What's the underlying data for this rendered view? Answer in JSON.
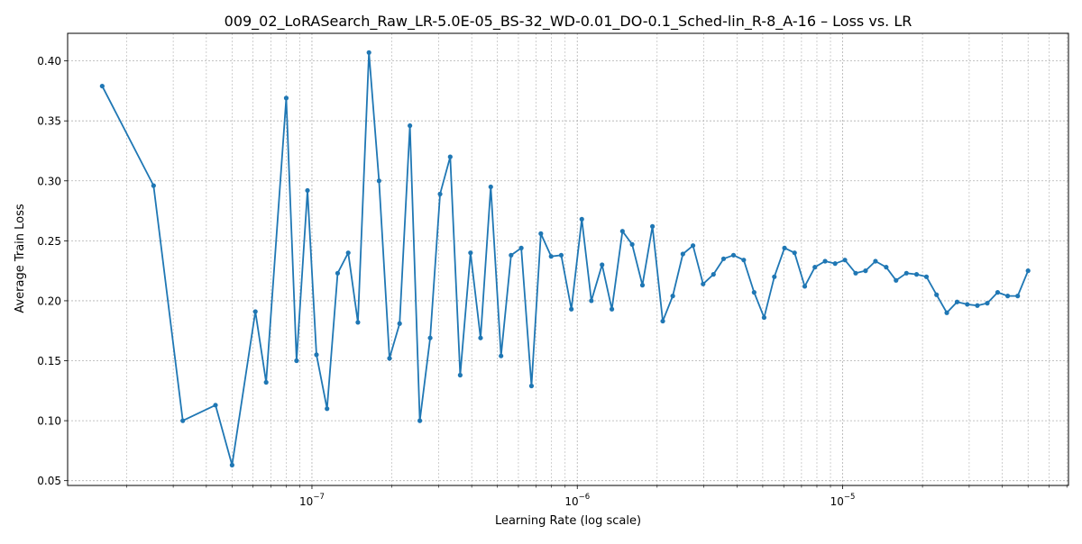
{
  "chart_data": {
    "type": "line",
    "title": "009_02_LoRASearch_Raw_LR-5.0E-05_BS-32_WD-0.01_DO-0.1_Sched-lin_R-8_A-16 – Loss vs. LR",
    "xlabel": "Learning Rate (log scale)",
    "ylabel": "Average Train Loss",
    "xscale": "log",
    "xlim": [
      1.2e-08,
      7.1e-05
    ],
    "ylim": [
      0.046,
      0.423
    ],
    "xticks": [
      {
        "value": 1e-07,
        "base": "10",
        "exp": "−7"
      },
      {
        "value": 1e-06,
        "base": "10",
        "exp": "−6"
      },
      {
        "value": 1e-05,
        "base": "10",
        "exp": "−5"
      }
    ],
    "yticks": [
      {
        "value": 0.05,
        "label": "0.05"
      },
      {
        "value": 0.1,
        "label": "0.10"
      },
      {
        "value": 0.15,
        "label": "0.15"
      },
      {
        "value": 0.2,
        "label": "0.20"
      },
      {
        "value": 0.25,
        "label": "0.25"
      },
      {
        "value": 0.3,
        "label": "0.30"
      },
      {
        "value": 0.35,
        "label": "0.35"
      },
      {
        "value": 0.4,
        "label": "0.40"
      }
    ],
    "grid": true,
    "line_color": "#1f77b4",
    "series": [
      {
        "x": [
          1.62e-08,
          2.53e-08,
          3.26e-08,
          4.33e-08,
          5e-08,
          6.12e-08,
          6.72e-08,
          8e-08,
          8.75e-08,
          9.62e-08,
          1.04e-07,
          1.14e-07,
          1.25e-07,
          1.37e-07,
          1.49e-07,
          1.64e-07,
          1.79e-07,
          1.96e-07,
          2.14e-07,
          2.34e-07,
          2.55e-07,
          2.79e-07,
          3.04e-07,
          3.32e-07,
          3.62e-07,
          3.96e-07,
          4.32e-07,
          4.72e-07,
          5.16e-07,
          5.63e-07,
          6.15e-07,
          6.72e-07,
          7.29e-07,
          7.97e-07,
          8.7e-07,
          9.5e-07,
          1.04e-06,
          1.13e-06,
          1.24e-06,
          1.35e-06,
          1.48e-06,
          1.61e-06,
          1.76e-06,
          1.92e-06,
          2.1e-06,
          2.29e-06,
          2.5e-06,
          2.73e-06,
          2.98e-06,
          3.26e-06,
          3.56e-06,
          3.88e-06,
          4.24e-06,
          4.64e-06,
          5.06e-06,
          5.53e-06,
          6.04e-06,
          6.59e-06,
          7.2e-06,
          7.86e-06,
          8.59e-06,
          9.37e-06,
          1.02e-05,
          1.12e-05,
          1.22e-05,
          1.33e-05,
          1.46e-05,
          1.59e-05,
          1.74e-05,
          1.9e-05,
          2.07e-05,
          2.26e-05,
          2.47e-05,
          2.7e-05,
          2.95e-05,
          3.22e-05,
          3.51e-05,
          3.84e-05,
          4.19e-05,
          4.57e-05,
          5e-05
        ],
        "y": [
          0.379,
          0.296,
          0.1,
          0.113,
          0.063,
          0.191,
          0.132,
          0.369,
          0.15,
          0.292,
          0.155,
          0.11,
          0.223,
          0.24,
          0.182,
          0.407,
          0.3,
          0.152,
          0.181,
          0.346,
          0.1,
          0.169,
          0.289,
          0.32,
          0.138,
          0.24,
          0.169,
          0.295,
          0.154,
          0.238,
          0.244,
          0.129,
          0.256,
          0.237,
          0.238,
          0.193,
          0.268,
          0.2,
          0.23,
          0.193,
          0.258,
          0.247,
          0.213,
          0.262,
          0.183,
          0.204,
          0.239,
          0.246,
          0.214,
          0.222,
          0.235,
          0.238,
          0.234,
          0.207,
          0.186,
          0.22,
          0.244,
          0.24,
          0.212,
          0.228,
          0.233,
          0.231,
          0.234,
          0.223,
          0.225,
          0.233,
          0.228,
          0.217,
          0.223,
          0.222,
          0.22,
          0.205,
          0.19,
          0.199,
          0.197,
          0.196,
          0.198,
          0.207,
          0.204,
          0.204,
          0.225
        ]
      }
    ]
  }
}
